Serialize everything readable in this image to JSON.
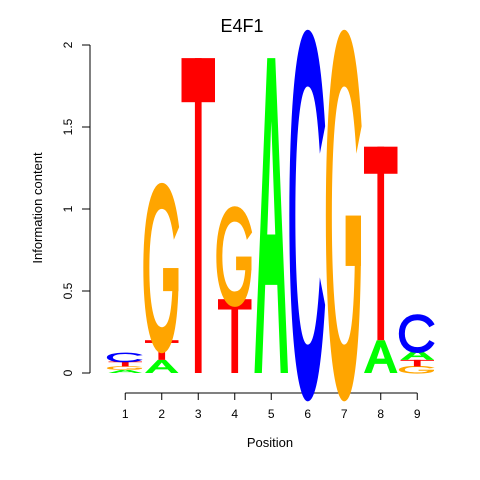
{
  "chart_data": {
    "type": "sequence-logo",
    "title": "E4F1",
    "xlabel": "Position",
    "ylabel": "Information content",
    "ylim": [
      0,
      2
    ],
    "yticks": [
      "0",
      "0.5",
      "1",
      "1.5",
      "2"
    ],
    "positions": [
      "1",
      "2",
      "3",
      "4",
      "5",
      "6",
      "7",
      "8",
      "9"
    ],
    "colors": {
      "A": "#00ff00",
      "C": "#0000ff",
      "G": "#ffa500",
      "T": "#ff0000"
    },
    "stacks": [
      {
        "position": "1",
        "letters": [
          {
            "base": "A",
            "height": 0.02
          },
          {
            "base": "G",
            "height": 0.02
          },
          {
            "base": "T",
            "height": 0.03
          },
          {
            "base": "C",
            "height": 0.05
          }
        ]
      },
      {
        "position": "2",
        "letters": [
          {
            "base": "A",
            "height": 0.08
          },
          {
            "base": "T",
            "height": 0.12
          }
        ]
      },
      {
        "position": "2",
        "letters": [
          {
            "base": "G",
            "height": 0.88
          }
        ]
      },
      {
        "position": "3",
        "letters": [
          {
            "base": "T",
            "height": 1.92
          }
        ]
      },
      {
        "position": "4",
        "letters": [
          {
            "base": "T",
            "height": 0.45
          },
          {
            "base": "G",
            "height": 0.52
          }
        ]
      },
      {
        "position": "5",
        "letters": [
          {
            "base": "A",
            "height": 1.92
          }
        ]
      },
      {
        "position": "6",
        "letters": [
          {
            "base": "C",
            "height": 1.92
          }
        ]
      },
      {
        "position": "7",
        "letters": [
          {
            "base": "G",
            "height": 1.92
          }
        ]
      },
      {
        "position": "8",
        "letters": [
          {
            "base": "A",
            "height": 0.2
          },
          {
            "base": "T",
            "height": 1.18
          }
        ]
      },
      {
        "position": "9",
        "letters": [
          {
            "base": "G",
            "height": 0.04
          },
          {
            "base": "T",
            "height": 0.04
          },
          {
            "base": "A",
            "height": 0.06
          },
          {
            "base": "C",
            "height": 0.2
          }
        ]
      }
    ]
  }
}
